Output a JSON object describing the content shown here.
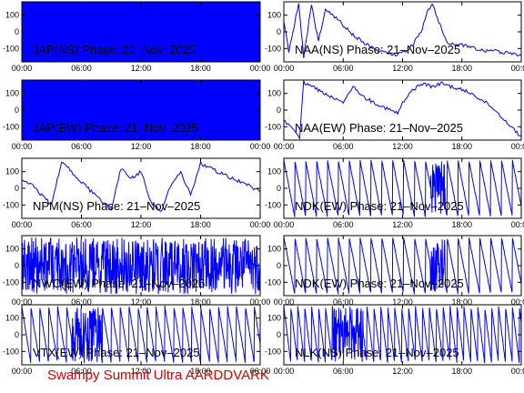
{
  "colors": {
    "trace": "#0000ff",
    "frame": "#000000",
    "footer": "#d40000"
  },
  "footer": "Swampy Summit Ultra AARDDVARK",
  "x_ticks": [
    "00:00",
    "06:00",
    "12:00",
    "18:00",
    "00:00"
  ],
  "y_ticks": [
    "100",
    "0",
    "-100"
  ],
  "chart_data": [
    {
      "type": "line",
      "label": "JAP(NS) Phase: 21–Nov–2025",
      "ylim": [
        -180,
        180
      ],
      "xlim": [
        0,
        24
      ],
      "style": "solid"
    },
    {
      "type": "line",
      "label": "NAA(NS) Phase: 21–Nov–2025",
      "ylim": [
        -180,
        180
      ],
      "xlim": [
        0,
        24
      ],
      "x": [
        0,
        0.5,
        1.5,
        2.0,
        2.8,
        3.5,
        4.2,
        5.0,
        6.0,
        7.0,
        8.0,
        9.0,
        10.0,
        11.0,
        12.0,
        13.0,
        14.0,
        14.5,
        15.0,
        15.5,
        16.5,
        18.0,
        19.0,
        20.0,
        22.0,
        24.0
      ],
      "y": [
        60,
        -120,
        170,
        -150,
        160,
        -60,
        140,
        100,
        40,
        -20,
        -60,
        -100,
        -120,
        -140,
        -130,
        -80,
        20,
        120,
        170,
        80,
        -60,
        -80,
        -90,
        -110,
        -120,
        -140
      ]
    },
    {
      "type": "line",
      "label": "JAP(EW) Phase: 21–Nov–2025",
      "ylim": [
        -180,
        180
      ],
      "xlim": [
        0,
        24
      ],
      "style": "solid"
    },
    {
      "type": "line",
      "label": "NAA(EW) Phase: 21–Nov–2025",
      "ylim": [
        -180,
        180
      ],
      "xlim": [
        0,
        24
      ],
      "x": [
        0,
        1.0,
        1.6,
        2.0,
        4.0,
        6.0,
        7.0,
        8.0,
        10.0,
        11.5,
        12.0,
        13.0,
        14.0,
        15.0,
        16.0,
        17.0,
        18.0,
        19.0,
        20.0,
        21.0,
        22.0,
        23.0,
        24.0
      ],
      "y": [
        -60,
        -120,
        -170,
        170,
        100,
        40,
        150,
        80,
        20,
        -20,
        40,
        120,
        160,
        140,
        160,
        140,
        120,
        100,
        60,
        20,
        -40,
        -100,
        -160
      ]
    },
    {
      "type": "line",
      "label": "NPM(NS) Phase: 21–Nov–2025",
      "ylim": [
        -180,
        180
      ],
      "xlim": [
        0,
        24
      ],
      "x": [
        0,
        1.0,
        2.0,
        3.0,
        4.0,
        5.0,
        6.0,
        7.0,
        8.0,
        9.0,
        10.0,
        11.0,
        12.0,
        13.0,
        14.0,
        15.0,
        16.0,
        17.0,
        18.0,
        19.0,
        20.0,
        22.0,
        24.0
      ],
      "y": [
        60,
        20,
        -40,
        -100,
        160,
        100,
        40,
        -20,
        -80,
        -120,
        120,
        60,
        100,
        -80,
        -140,
        20,
        100,
        -40,
        150,
        120,
        90,
        40,
        -20
      ]
    },
    {
      "type": "line",
      "label": "NDK(EW) Phase: 21–Nov–2025",
      "ylim": [
        -180,
        180
      ],
      "xlim": [
        0,
        24
      ],
      "style": "sawtooth",
      "period_hours": 1.1
    },
    {
      "type": "line",
      "label": "NWC(EW) Phase: 21–Nov–2025",
      "ylim": [
        -180,
        180
      ],
      "xlim": [
        0,
        24
      ],
      "style": "noise"
    },
    {
      "type": "line",
      "label": "NDK(EW) Phase: 21–Nov–2025",
      "ylim": [
        -180,
        180
      ],
      "xlim": [
        0,
        24
      ],
      "style": "sawtooth",
      "period_hours": 1.1
    },
    {
      "type": "line",
      "label": "VTX(EW) Phase: 21–Nov–2025",
      "ylim": [
        -180,
        180
      ],
      "xlim": [
        0,
        24
      ],
      "style": "sawtooth-noise",
      "period_hours": 0.9
    },
    {
      "type": "line",
      "label": "NLK(NS) Phase: 21–Nov–2025",
      "ylim": [
        -180,
        180
      ],
      "xlim": [
        0,
        24
      ],
      "style": "sawtooth-noise",
      "period_hours": 0.7
    }
  ]
}
